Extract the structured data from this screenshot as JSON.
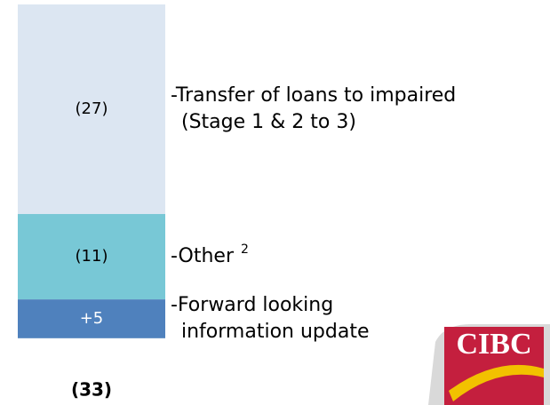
{
  "chart_data": {
    "type": "stacked_bar",
    "segments": [
      {
        "value": -27,
        "value_label": "(27)",
        "color": "#dce6f2",
        "label_color": "#000000",
        "description": [
          "-Transfer of loans to impaired",
          "(Stage 1 & 2 to 3)"
        ]
      },
      {
        "value": -11,
        "value_label": "(11)",
        "color": "#78c8d6",
        "label_color": "#000000",
        "description": [
          "-Other"
        ],
        "footnote": "2"
      },
      {
        "value": 5,
        "value_label": "+5",
        "color": "#4f81bd",
        "label_color": "#ffffff",
        "description": [
          "-Forward looking",
          "information update"
        ]
      }
    ],
    "total": {
      "value": -33,
      "label": "(33)"
    },
    "logo_text": "CIBC"
  }
}
